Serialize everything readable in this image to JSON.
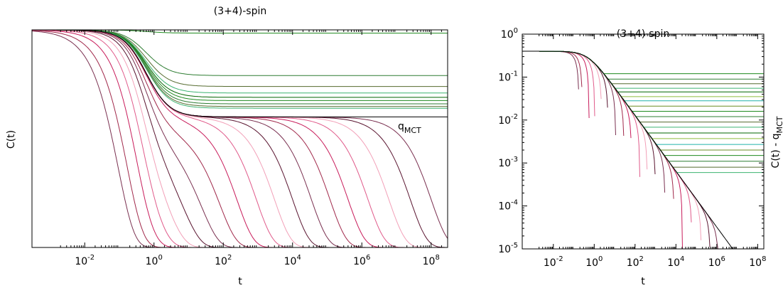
{
  "chart_data": [
    {
      "type": "line",
      "title": "(3+4)-spin",
      "xlabel": "t",
      "ylabel": "C(t)",
      "x_scale": "log",
      "xlim": [
        0.0003,
        300000000
      ],
      "x_ticks": [
        0.01,
        1,
        100,
        10000,
        1000000,
        100000000
      ],
      "x_tick_labels": [
        {
          "base": "10",
          "exp": "-2"
        },
        {
          "base": "10",
          "exp": "0"
        },
        {
          "base": "10",
          "exp": "2"
        },
        {
          "base": "10",
          "exp": "4"
        },
        {
          "base": "10",
          "exp": "6"
        },
        {
          "base": "10",
          "exp": "8"
        }
      ],
      "ylim": [
        0,
        1
      ],
      "y_ticks_labeled": false,
      "grid": false,
      "annotation": {
        "base": "q",
        "sub": "MCT",
        "x": 30000000,
        "y": 0.555
      },
      "plateau_qmct": 0.6,
      "initial_value": 1.0,
      "liquid_alpha_times": [
        0.1,
        0.2,
        0.5,
        1.2,
        3,
        8,
        25,
        80,
        250,
        900,
        3000,
        10000,
        35000,
        120000,
        400000,
        1500000,
        6000000,
        25000000,
        100000000
      ],
      "glass_plateaus": [
        0.985,
        0.79,
        0.74,
        0.71,
        0.69,
        0.675,
        0.66,
        0.648,
        0.64
      ],
      "colors": {
        "liquid": [
          "#7a3050",
          "#a0284a",
          "#c81b5a",
          "#e05a8a",
          "#f2a0b8",
          "#5a1530"
        ],
        "glass": [
          "#1f8a1f",
          "#2e7d32",
          "#556b2f",
          "#3cb371",
          "#006400"
        ],
        "critical": "#000000"
      }
    },
    {
      "type": "line",
      "title": "(3+4)-spin",
      "xlabel": "t",
      "ylabel": "C(t) - q",
      "ylabel_sub": "MCT",
      "x_scale": "log",
      "y_scale": "log",
      "xlim": [
        0.0003,
        200000000
      ],
      "ylim": [
        1e-05,
        1
      ],
      "x_ticks": [
        0.01,
        1,
        100,
        10000,
        1000000,
        100000000
      ],
      "x_tick_labels": [
        {
          "base": "10",
          "exp": "-2"
        },
        {
          "base": "10",
          "exp": "0"
        },
        {
          "base": "10",
          "exp": "2"
        },
        {
          "base": "10",
          "exp": "4"
        },
        {
          "base": "10",
          "exp": "6"
        },
        {
          "base": "10",
          "exp": "8"
        }
      ],
      "y_ticks": [
        1e-05,
        0.0001,
        0.001,
        0.01,
        0.1,
        1
      ],
      "y_tick_labels": [
        {
          "base": "10",
          "exp": "-5"
        },
        {
          "base": "10",
          "exp": "-4"
        },
        {
          "base": "10",
          "exp": "-3"
        },
        {
          "base": "10",
          "exp": "-2"
        },
        {
          "base": "10",
          "exp": "-1"
        },
        {
          "base": "10",
          "exp": "0"
        }
      ],
      "grid": false,
      "initial_value": 0.4,
      "liquid_cutoff_times": [
        0.2,
        0.3,
        0.7,
        1.5,
        4,
        10,
        30,
        100,
        300,
        1000,
        3000,
        10000,
        40000,
        150000,
        500000,
        2000000,
        8000000,
        30000000,
        100000000
      ],
      "glass_plateaus": [
        0.12,
        0.09,
        0.07,
        0.055,
        0.045,
        0.035,
        0.028,
        0.021,
        0.016,
        0.012,
        0.009,
        0.0068,
        0.005,
        0.0037,
        0.0027,
        0.002,
        0.0015,
        0.0011,
        0.0008,
        0.0006
      ],
      "colors": {
        "liquid": [
          "#7a3050",
          "#a0284a",
          "#c81b5a",
          "#e05a8a",
          "#f2a0b8",
          "#5a1530"
        ],
        "glass": [
          "#1f8a1f",
          "#2e7d32",
          "#556b2f",
          "#3cb371",
          "#006400",
          "#8fbc3f",
          "#20b2aa",
          "#6b8e23"
        ],
        "critical": "#000000"
      }
    }
  ]
}
